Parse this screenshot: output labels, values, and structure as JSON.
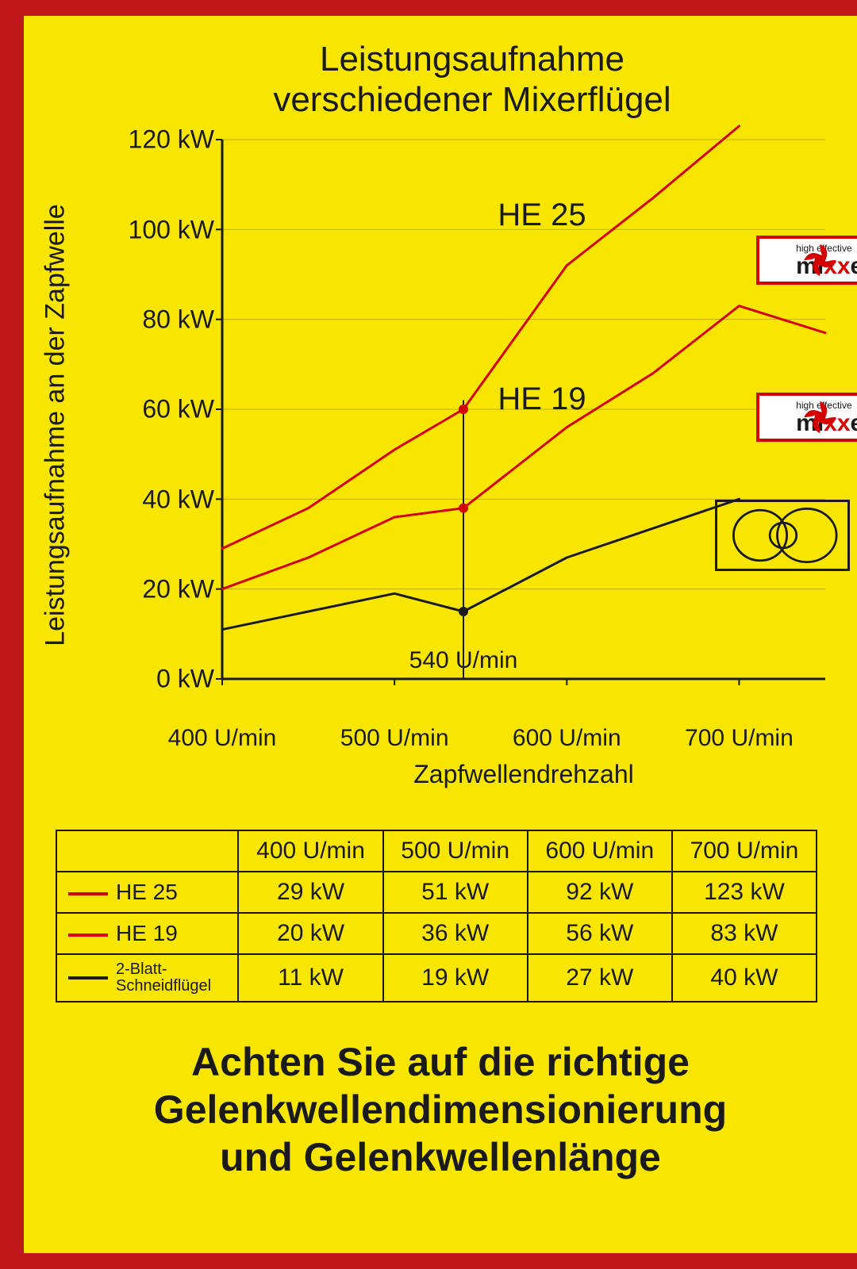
{
  "title_line1": "Leistungsaufnahme",
  "title_line2": "verschiedener Mixerflügel",
  "chart": {
    "type": "line",
    "ylabel": "Leistungsaufnahme an der Zapfwelle",
    "xlabel": "Zapfwellendrehzahl",
    "ylim": [
      0,
      120
    ],
    "xlim": [
      400,
      750
    ],
    "yticks": [
      0,
      20,
      40,
      60,
      80,
      100,
      120
    ],
    "ytick_labels": [
      "0 kW",
      "20 kW",
      "40 kW",
      "60 kW",
      "80 kW",
      "100 kW",
      "120 kW"
    ],
    "xticks": [
      400,
      500,
      600,
      700
    ],
    "xtick_labels": [
      "400 U/min",
      "500 U/min",
      "600 U/min",
      "700 U/min"
    ],
    "marker_x": 540,
    "marker_label": "540 U/min",
    "background_color": "#f9e600",
    "axis_color": "#1a1a1a",
    "axis_width": 3,
    "grid_color": "#1a1a1a",
    "series": [
      {
        "name": "HE 25",
        "label": "HE 25",
        "color": "#d40000",
        "width": 3,
        "x": [
          400,
          450,
          500,
          540,
          600,
          650,
          700
        ],
        "y": [
          29,
          38,
          51,
          60,
          92,
          107,
          123
        ],
        "label_pos": {
          "x": 560,
          "y": 103
        },
        "brand_pos": {
          "x": 710,
          "y_top": 92
        }
      },
      {
        "name": "HE 19",
        "label": "HE 19",
        "color": "#d40000",
        "width": 3,
        "x": [
          400,
          450,
          500,
          540,
          600,
          650,
          700,
          750
        ],
        "y": [
          20,
          27,
          36,
          38,
          56,
          68,
          83,
          77
        ],
        "label_pos": {
          "x": 560,
          "y": 62
        },
        "brand_pos": {
          "x": 710,
          "y_top": 57
        }
      },
      {
        "name": "2-Blatt-Schneidflügel",
        "label": "2-Blatt-\nSchneidflügel",
        "color": "#1a1a1a",
        "width": 3,
        "x": [
          400,
          500,
          540,
          600,
          700
        ],
        "y": [
          11,
          19,
          15,
          27,
          40
        ],
        "blade_pos": {
          "x": 700,
          "y_top": 32
        }
      }
    ],
    "title_fontsize": 44,
    "label_fontsize": 34,
    "tick_fontsize": 32,
    "series_label_fontsize": 40
  },
  "table": {
    "columns": [
      "",
      "400 U/min",
      "500 U/min",
      "600 U/min",
      "700 U/min"
    ],
    "rows": [
      {
        "legend_color": "#d40000",
        "legend_label": "HE 25",
        "cells": [
          "29 kW",
          "51 kW",
          "92 kW",
          "123 kW"
        ]
      },
      {
        "legend_color": "#d40000",
        "legend_label": "HE 19",
        "cells": [
          "20 kW",
          "36 kW",
          "56 kW",
          "83 kW"
        ]
      },
      {
        "legend_color": "#1a1a1a",
        "legend_label_small": "2-Blatt-\nSchneidflügel",
        "cells": [
          "11 kW",
          "19 kW",
          "27 kW",
          "40 kW"
        ]
      }
    ],
    "border_color": "#1a1a1a",
    "fontsize": 30
  },
  "footer_line1": "Achten Sie auf die richtige",
  "footer_line2": "Gelenkwellendimensionierung",
  "footer_line3": "und Gelenkwellenlänge",
  "brand": {
    "tag": "high effective",
    "text_mi": "mi",
    "text_xx": "xx",
    "text_er": "er",
    "border_color": "#d40000",
    "bg_color": "#ffffff",
    "fan_color": "#d40000"
  },
  "colors": {
    "page_bg": "#c01818",
    "panel_bg": "#f9e600",
    "text": "#1a1a1a"
  }
}
